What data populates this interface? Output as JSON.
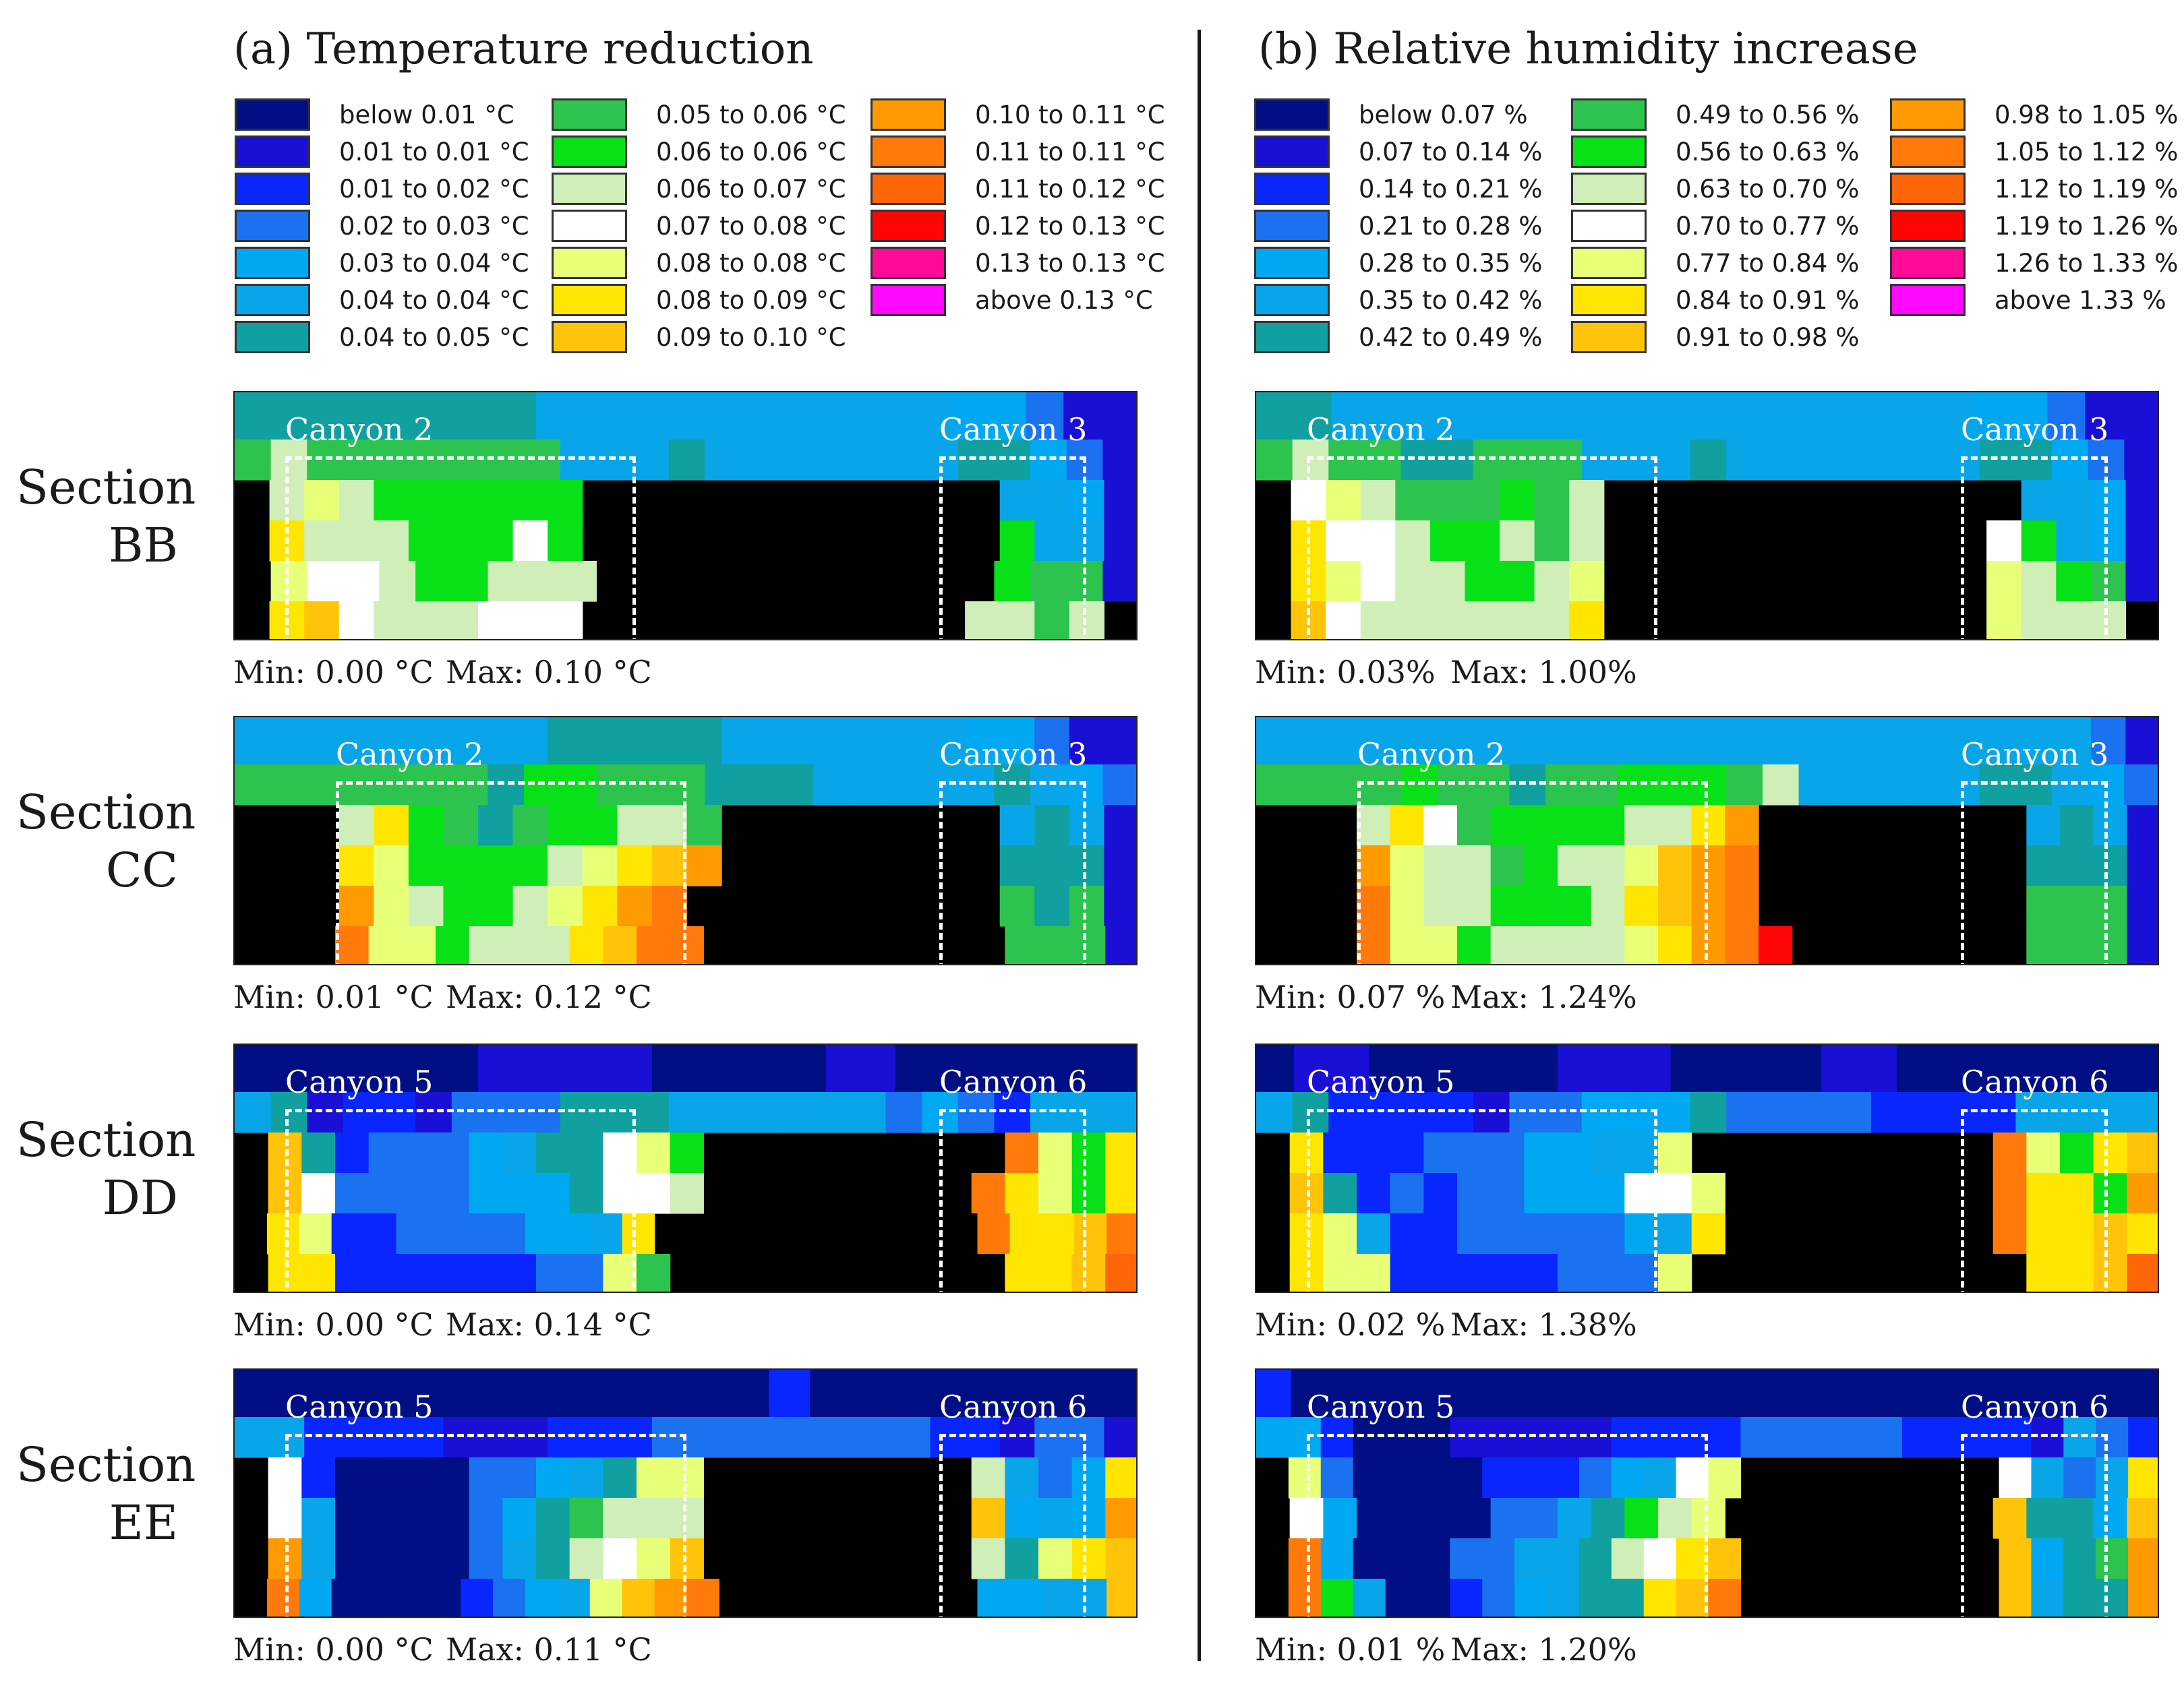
{
  "figure": {
    "left_title": "(a) Temperature reduction",
    "right_title": "(b) Relative humidity increase",
    "palette": [
      "#000f83",
      "#1a0fd5",
      "#0a26ff",
      "#1a72f0",
      "#00a8f2",
      "#08a6e8",
      "#10a0a0",
      "#2cc44e",
      "#08e017",
      "#cfeeb8",
      "#ffffff",
      "#e8ff78",
      "#ffe600",
      "#ffc40a",
      "#ff9b00",
      "#ff7a0a",
      "#ff6608",
      "#ff0505",
      "#ff0b97",
      "#ff09ff"
    ],
    "legends": [
      {
        "id": "temperature",
        "columns": [
          [
            {
              "label": "below 0.01 °C",
              "color": "#000f83"
            },
            {
              "label": "0.01 to 0.01 °C",
              "color": "#1a0fd5"
            },
            {
              "label": "0.01 to 0.02 °C",
              "color": "#0a26ff"
            },
            {
              "label": "0.02 to 0.03 °C",
              "color": "#1a72f0"
            },
            {
              "label": "0.03 to 0.04 °C",
              "color": "#00a8f2"
            },
            {
              "label": "0.04 to 0.04 °C",
              "color": "#08a6e8"
            },
            {
              "label": "0.04 to 0.05 °C",
              "color": "#10a0a0"
            }
          ],
          [
            {
              "label": "0.05 to 0.06 °C",
              "color": "#2cc44e"
            },
            {
              "label": "0.06 to 0.06 °C",
              "color": "#08e017"
            },
            {
              "label": "0.06 to 0.07 °C",
              "color": "#cfeeb8"
            },
            {
              "label": "0.07 to 0.08 °C",
              "color": "#ffffff"
            },
            {
              "label": "0.08 to 0.08 °C",
              "color": "#e8ff78"
            },
            {
              "label": "0.08 to 0.09 °C",
              "color": "#ffe600"
            },
            {
              "label": "0.09 to 0.10 °C",
              "color": "#ffc40a"
            }
          ],
          [
            {
              "label": "0.10 to 0.11 °C",
              "color": "#ff9b00"
            },
            {
              "label": "0.11 to 0.11 °C",
              "color": "#ff7a0a"
            },
            {
              "label": "0.11 to 0.12 °C",
              "color": "#ff6608"
            },
            {
              "label": "0.12 to 0.13 °C",
              "color": "#ff0505"
            },
            {
              "label": "0.13 to 0.13 °C",
              "color": "#ff0b97"
            },
            {
              "label": "above 0.13 °C",
              "color": "#ff09ff"
            }
          ]
        ]
      },
      {
        "id": "humidity",
        "columns": [
          [
            {
              "label": "below 0.07 %",
              "color": "#000f83"
            },
            {
              "label": "0.07 to 0.14 %",
              "color": "#1a0fd5"
            },
            {
              "label": "0.14 to 0.21 %",
              "color": "#0a26ff"
            },
            {
              "label": "0.21 to 0.28 %",
              "color": "#1a72f0"
            },
            {
              "label": "0.28 to 0.35 %",
              "color": "#00a8f2"
            },
            {
              "label": "0.35 to 0.42 %",
              "color": "#08a6e8"
            },
            {
              "label": "0.42 to 0.49 %",
              "color": "#10a0a0"
            }
          ],
          [
            {
              "label": "0.49 to 0.56 %",
              "color": "#2cc44e"
            },
            {
              "label": "0.56 to 0.63 %",
              "color": "#08e017"
            },
            {
              "label": "0.63 to 0.70 %",
              "color": "#cfeeb8"
            },
            {
              "label": "0.70 to 0.77 %",
              "color": "#ffffff"
            },
            {
              "label": "0.77 to 0.84 %",
              "color": "#e8ff78"
            },
            {
              "label": "0.84 to 0.91 %",
              "color": "#ffe600"
            },
            {
              "label": "0.91 to 0.98 %",
              "color": "#ffc40a"
            }
          ],
          [
            {
              "label": "0.98 to 1.05 %",
              "color": "#ff9b00"
            },
            {
              "label": "1.05 to 1.12 %",
              "color": "#ff7a0a"
            },
            {
              "label": "1.12 to 1.19 %",
              "color": "#ff6608"
            },
            {
              "label": "1.19 to 1.26 %",
              "color": "#ff0505"
            },
            {
              "label": "1.26 to 1.33 %",
              "color": "#ff0b97"
            },
            {
              "label": "above 1.33 %",
              "color": "#ff09ff"
            }
          ]
        ]
      }
    ],
    "sections": [
      {
        "line1": "Section",
        "line2": "BB",
        "canyon_left": "Canyon 2",
        "canyon_right": "Canyon 3",
        "temperature": {
          "min": "Min: 0.00 °C",
          "max": "Max: 0.10 °C"
        },
        "humidity": {
          "min": "Min: 0.03%",
          "max": "Max: 1.00%"
        }
      },
      {
        "line1": "Section",
        "line2": "CC",
        "canyon_left": "Canyon 2",
        "canyon_right": "Canyon 3",
        "temperature": {
          "min": "Min: 0.01 °C",
          "max": "Max: 0.12 °C"
        },
        "humidity": {
          "min": "Min: 0.07 %",
          "max": "Max: 1.24%"
        }
      },
      {
        "line1": "Section",
        "line2": "DD",
        "canyon_left": "Canyon 5",
        "canyon_right": "Canyon 6",
        "temperature": {
          "min": "Min: 0.00 °C",
          "max": "Max: 0.14 °C"
        },
        "humidity": {
          "min": "Min: 0.02 %",
          "max": "Max: 1.38%"
        }
      },
      {
        "line1": "Section",
        "line2": "EE",
        "canyon_left": "Canyon 5",
        "canyon_right": "Canyon 6",
        "temperature": {
          "min": "Min: 0.00 °C",
          "max": "Max: 0.11 °C"
        },
        "humidity": {
          "min": "Min: 0.01 %",
          "max": "Max: 1.20%"
        }
      }
    ],
    "heatmaps": {
      "BB_T": [
        "666666665555555555544311",
        "7977777775556555555566431",
        "x9b9888888xxxxxxxxxxxx5541",
        "xc999888a8xxxxxxxxxxxx8551",
        "xbaa988999xxxxxxxxxxx8771",
        "xcda999aaaxxxxxxxxxxx9979x"
      ],
      "BB_H": [
        "665555555555555555544311",
        "7977667775556555555566431",
        "xab9777879xxxxxxxxxxxx5541",
        "xcaa988979xxxxxxxxxxxa8541",
        "xcba99889bxxxxxxxxxxxb9871",
        "xda999999cxxxxxxxxxxxb999x"
      ],
      "CC_T": [
        "55555555566666555555544311",
        "7777777688777666555556543",
        "xxx9c876788997xxxxxxxx5651",
        "xxxcb88889bcdexxxxxxxx6661",
        "xxxeb9889bcefxxxxxxxxx7671",
        "xxxfbb8999cdffxxxxxxxxx7771"
      ],
      "CC_H": [
        "55555555555555555555555531",
        "7777877677888795555566543",
        "xxx9ca7888899cexxxxxxxx5651",
        "xxxeb997899bdefxxxxxxxx6661",
        "xxxfb998889cdefxxxxxxxx7771",
        "xxxfbb89999bcefhxxxxxxx7771"
      ],
      "DD_T": [
        "00000001111100000110000000",
        "5612213336665555553432555",
        "xd623334566ab8xxxxxxxxxfb8c",
        "xda33334446aa9xxxxxxxxfcb8c",
        "xcb223333445cxxxxxxxxxsfccdf",
        "xcc22222233b7xxxxxxxxxrccdg"
      ],
      "DD_H": [
        "011000001110000110000000",
        "5622221334446333322225555",
        "xc2223334455bxxxxxxxxxfb8cd",
        "xd623233444aabxxxxxxxxfcc8e",
        "xcb5223333345cxxxxxxxxfccdc",
        "xcbb22222333bxxxxxxxxxrccdg"
      ],
      "EE_T": [
        "0000000000000200000000",
        "55222211122233333333221331",
        "xa2000033456bbxxxxxxxx9534c",
        "xa500003467999xxxxxxxxd454e",
        "xe500003569abdxxxxxxxx96bcd",
        "xf400002345bdefxxxxxxxx4455d"
      ],
      "EE_H": [
        "20000000000000000000000000",
        "4420001111122223333322221532",
        "xb30000222345abxxxxxxxxa535c",
        "xa40000335689bxxxxxxxxd664d",
        "xf4000335569acdxxxxxxxxd467e",
        "xf8500234566cdfxxxxxxxxd566e"
      ]
    }
  }
}
